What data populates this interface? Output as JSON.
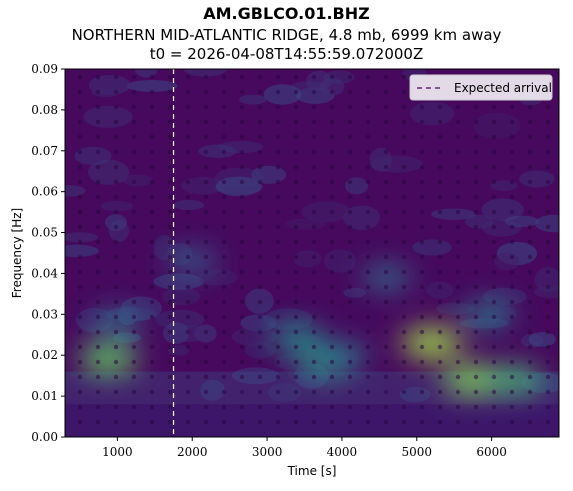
{
  "header": {
    "station": "AM.GBLCO.01.BHZ",
    "event": "NORTHERN MID-ATLANTIC RIDGE, 4.8 mb, 6999 km away",
    "origin_time": "t0 = 2026-04-08T14:55:59.072000Z"
  },
  "chart_data": {
    "type": "heatmap",
    "xlabel": "Time [s]",
    "ylabel": "Frequency [Hz]",
    "xlim": [
      300,
      6900
    ],
    "ylim": [
      0,
      0.09
    ],
    "x_ticks": [
      1000,
      2000,
      3000,
      4000,
      5000,
      6000
    ],
    "y_ticks": [
      "0.00",
      "0.01",
      "0.02",
      "0.03",
      "0.04",
      "0.05",
      "0.06",
      "0.07",
      "0.08",
      "0.09"
    ],
    "colormap": "viridis",
    "grid": false,
    "legend": {
      "placement": "top-right",
      "entries": [
        "Expected arrival"
      ]
    },
    "expected_arrival_time": 1750,
    "expected_arrival_color": "#ffffff",
    "hotspots": [
      {
        "t": 880,
        "f": 0.019,
        "level": 0.75
      },
      {
        "t": 1000,
        "f": 0.028,
        "level": 0.35
      },
      {
        "t": 3400,
        "f": 0.024,
        "level": 0.5
      },
      {
        "t": 3800,
        "f": 0.018,
        "level": 0.55
      },
      {
        "t": 4000,
        "f": 0.02,
        "level": 0.4
      },
      {
        "t": 4600,
        "f": 0.039,
        "level": 0.35
      },
      {
        "t": 5200,
        "f": 0.023,
        "level": 0.85
      },
      {
        "t": 5750,
        "f": 0.014,
        "level": 0.8
      },
      {
        "t": 6300,
        "f": 0.014,
        "level": 0.65
      },
      {
        "t": 5950,
        "f": 0.03,
        "level": 0.4
      },
      {
        "t": 2000,
        "f": 0.043,
        "level": 0.3
      }
    ]
  }
}
